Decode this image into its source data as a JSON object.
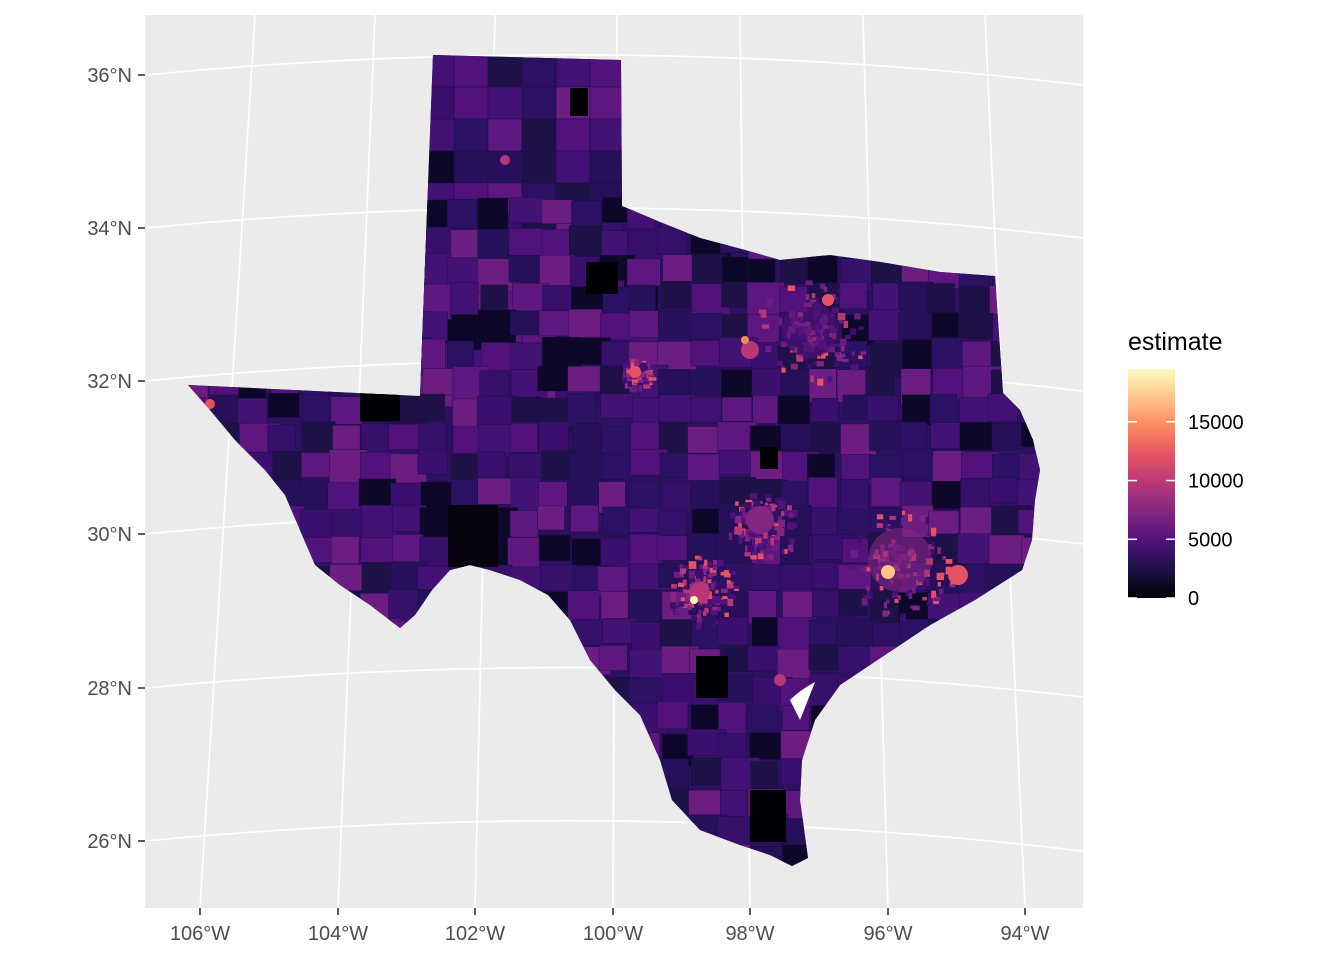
{
  "map": {
    "region": "Texas",
    "fill_variable": "estimate",
    "panel_background": "#ebebeb",
    "graticule_color": "#ffffff",
    "latitude_labels": [
      "36°N",
      "34°N",
      "32°N",
      "30°N",
      "28°N",
      "26°N"
    ],
    "longitude_labels": [
      "106°W",
      "104°W",
      "102°W",
      "100°W",
      "98°W",
      "96°W",
      "94°W"
    ]
  },
  "legend": {
    "title": "estimate",
    "breaks": [
      {
        "value": 0,
        "label": "0"
      },
      {
        "value": 5000,
        "label": "5000"
      },
      {
        "value": 10000,
        "label": "10000"
      },
      {
        "value": 15000,
        "label": "15000"
      }
    ],
    "range": [
      0,
      19500
    ],
    "palette": [
      "#000004",
      "#1d1147",
      "#51127c",
      "#832681",
      "#b73779",
      "#e75263",
      "#fc8961",
      "#fec488",
      "#fcfdbf"
    ]
  }
}
